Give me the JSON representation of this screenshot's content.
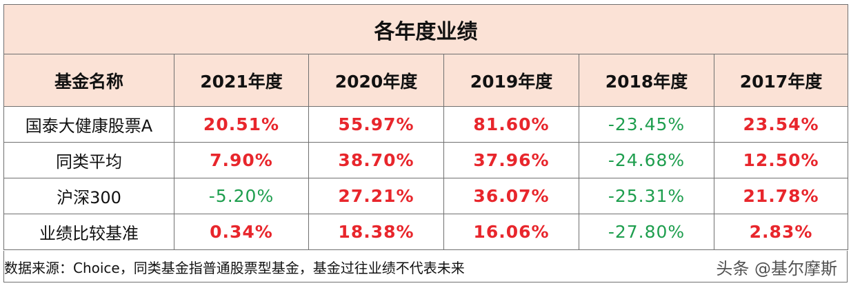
{
  "table": {
    "title": "各年度业绩",
    "headers": [
      "基金名称",
      "2021年度",
      "2020年度",
      "2019年度",
      "2018年度",
      "2017年度"
    ],
    "rows": [
      {
        "name": "国泰大健康股票A",
        "values": [
          "20.51%",
          "55.97%",
          "81.60%",
          "-23.45%",
          "23.54%"
        ]
      },
      {
        "name": "同类平均",
        "values": [
          "7.90%",
          "38.70%",
          "37.96%",
          "-24.68%",
          "12.50%"
        ]
      },
      {
        "name": "沪深300",
        "values": [
          "-5.20%",
          "27.21%",
          "36.07%",
          "-25.31%",
          "21.78%"
        ]
      },
      {
        "name": "业绩比较基准",
        "values": [
          "0.34%",
          "18.38%",
          "16.06%",
          "-27.80%",
          "2.83%"
        ]
      }
    ]
  },
  "footer": {
    "note": "数据来源：Choice，同类基金指普通股票型基金，基金过往业绩不代表未来",
    "watermark": "头条 @基尔摩斯"
  },
  "colors": {
    "header_bg": "#fbe2d6",
    "positive": "#e8262c",
    "negative": "#1e9e4e",
    "border": "#6f6f6f"
  }
}
